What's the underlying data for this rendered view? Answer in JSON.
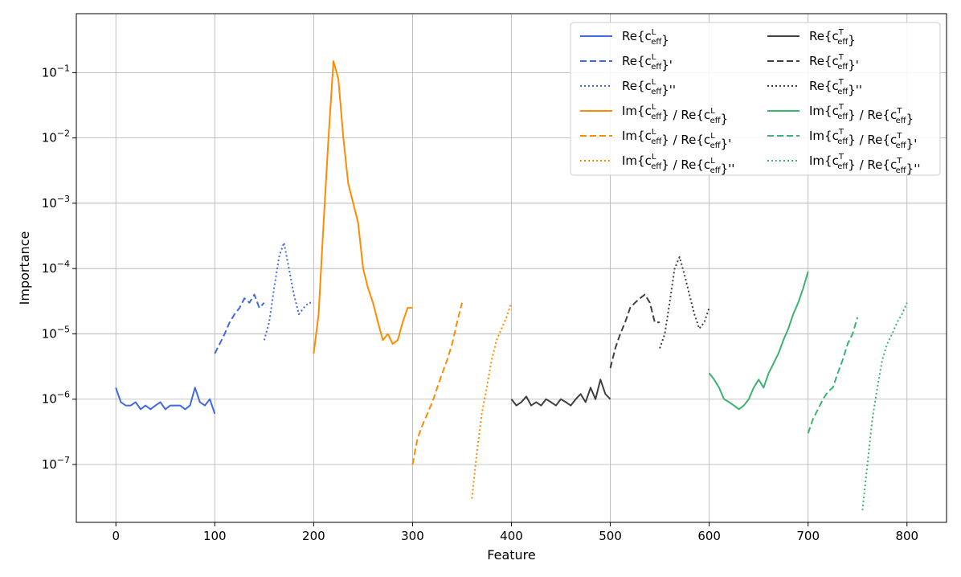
{
  "chart_data": {
    "type": "line",
    "title": "",
    "xlabel": "Feature",
    "ylabel": "Importance",
    "xlim": [
      -40,
      840
    ],
    "ylim": [
      1.3e-08,
      0.8
    ],
    "yscale": "log",
    "grid": true,
    "legend_position": "top-right",
    "legend_columns": 2,
    "x_ticks": [
      "0",
      "100",
      "200",
      "300",
      "400",
      "500",
      "600",
      "700",
      "800"
    ],
    "y_ticks": [
      "10^-7",
      "10^-6",
      "10^-5",
      "10^-4",
      "10^-3",
      "10^-2",
      "10^-1"
    ],
    "colors": {
      "blue": "#4169e1",
      "orange": "#ff8c00",
      "gray": "#404040",
      "green": "#3cb371"
    },
    "series": [
      {
        "key": "s1",
        "base": "Re{c",
        "sup": "L",
        "suffix": "}",
        "color": "#4169e1",
        "dash": "solid",
        "x": [
          0,
          5,
          10,
          15,
          20,
          25,
          30,
          35,
          40,
          45,
          50,
          55,
          60,
          65,
          70,
          75,
          80,
          85,
          90,
          95,
          100
        ],
        "y": [
          1.5e-06,
          9e-07,
          8e-07,
          8e-07,
          9e-07,
          7e-07,
          8e-07,
          7e-07,
          8e-07,
          9e-07,
          7e-07,
          8e-07,
          8e-07,
          8e-07,
          7e-07,
          8e-07,
          1.5e-06,
          9e-07,
          8e-07,
          1e-06,
          6e-07
        ]
      },
      {
        "key": "s2",
        "base": "Re{c",
        "sup": "L",
        "suffix": "}'",
        "color": "#4169e1",
        "dash": "dashed",
        "x": [
          100,
          105,
          110,
          115,
          120,
          125,
          130,
          135,
          140,
          145,
          150
        ],
        "y": [
          5e-06,
          7e-06,
          1e-05,
          1.5e-05,
          2e-05,
          2.5e-05,
          3.5e-05,
          3e-05,
          4e-05,
          2.5e-05,
          3e-05
        ]
      },
      {
        "key": "s3",
        "base": "Re{c",
        "sup": "L",
        "suffix": "}''",
        "color": "#4169e1",
        "dash": "dotted",
        "x": [
          150,
          155,
          160,
          165,
          170,
          175,
          180,
          185,
          190,
          195,
          200
        ],
        "y": [
          8e-06,
          1.5e-05,
          5e-05,
          0.00015,
          0.00025,
          0.0001,
          4e-05,
          2e-05,
          2.5e-05,
          3e-05,
          3e-05
        ]
      },
      {
        "key": "s4",
        "base": "Im{c",
        "sup": "L",
        "mid": "} / Re{c",
        "sup2": "L",
        "suffix": "}",
        "color": "#ff8c00",
        "dash": "solid",
        "x": [
          200,
          205,
          210,
          215,
          220,
          225,
          230,
          235,
          240,
          245,
          250,
          255,
          260,
          265,
          270,
          275,
          280,
          285,
          290,
          295,
          300
        ],
        "y": [
          5e-06,
          2e-05,
          0.0005,
          0.01,
          0.15,
          0.08,
          0.01,
          0.002,
          0.001,
          0.0005,
          0.0001,
          5e-05,
          3e-05,
          1.5e-05,
          8e-06,
          1e-05,
          7e-06,
          8e-06,
          1.5e-05,
          2.5e-05,
          2.5e-05
        ]
      },
      {
        "key": "s5",
        "base": "Im{c",
        "sup": "L",
        "mid": "} / Re{c",
        "sup2": "L",
        "suffix": "}'",
        "color": "#ff8c00",
        "dash": "dashed",
        "x": [
          300,
          305,
          310,
          315,
          320,
          325,
          330,
          335,
          340,
          345,
          350
        ],
        "y": [
          1e-07,
          2.5e-07,
          4e-07,
          6e-07,
          9e-07,
          1.5e-06,
          2.5e-06,
          4e-06,
          7e-06,
          1.5e-05,
          3e-05
        ]
      },
      {
        "key": "s6",
        "base": "Im{c",
        "sup": "L",
        "mid": "} / Re{c",
        "sup2": "L",
        "suffix": "}''",
        "color": "#ff8c00",
        "dash": "dotted",
        "x": [
          360,
          365,
          370,
          375,
          380,
          385,
          390,
          395,
          400
        ],
        "y": [
          3e-08,
          1.5e-07,
          6e-07,
          1.5e-06,
          4e-06,
          8e-06,
          1.2e-05,
          1.8e-05,
          3e-05
        ]
      },
      {
        "key": "s7",
        "base": "Re{c",
        "sup": "T",
        "suffix": "}",
        "color": "#404040",
        "dash": "solid",
        "x": [
          400,
          405,
          410,
          415,
          420,
          425,
          430,
          435,
          440,
          445,
          450,
          455,
          460,
          465,
          470,
          475,
          480,
          485,
          490,
          495,
          500
        ],
        "y": [
          1e-06,
          8e-07,
          9e-07,
          1.1e-06,
          8e-07,
          9e-07,
          8e-07,
          1e-06,
          9e-07,
          8e-07,
          1e-06,
          9e-07,
          8e-07,
          1e-06,
          1.2e-06,
          9e-07,
          1.5e-06,
          1e-06,
          2e-06,
          1.2e-06,
          1e-06
        ]
      },
      {
        "key": "s8",
        "base": "Re{c",
        "sup": "T",
        "suffix": "}'",
        "color": "#404040",
        "dash": "dashed",
        "x": [
          500,
          505,
          510,
          515,
          520,
          525,
          530,
          535,
          540,
          545,
          550
        ],
        "y": [
          3e-06,
          6e-06,
          1e-05,
          1.5e-05,
          2.5e-05,
          3e-05,
          3.5e-05,
          4e-05,
          3e-05,
          1.5e-05,
          1.5e-05
        ]
      },
      {
        "key": "s9",
        "base": "Re{c",
        "sup": "T",
        "suffix": "}''",
        "color": "#404040",
        "dash": "dotted",
        "x": [
          550,
          555,
          560,
          565,
          570,
          575,
          580,
          585,
          590,
          595,
          600
        ],
        "y": [
          6e-06,
          1e-05,
          3e-05,
          0.0001,
          0.00015,
          8e-05,
          4e-05,
          2e-05,
          1.2e-05,
          1.5e-05,
          2.5e-05
        ]
      },
      {
        "key": "s10",
        "base": "Im{c",
        "sup": "T",
        "mid": "} / Re{c",
        "sup2": "T",
        "suffix": "}",
        "color": "#3cb371",
        "dash": "solid",
        "x": [
          600,
          605,
          610,
          615,
          620,
          625,
          630,
          635,
          640,
          645,
          650,
          655,
          660,
          665,
          670,
          675,
          680,
          685,
          690,
          695,
          700
        ],
        "y": [
          2.5e-06,
          2e-06,
          1.5e-06,
          1e-06,
          9e-07,
          8e-07,
          7e-07,
          8e-07,
          1e-06,
          1.5e-06,
          2e-06,
          1.5e-06,
          2.5e-06,
          3.5e-06,
          5e-06,
          8e-06,
          1.2e-05,
          2e-05,
          3e-05,
          5e-05,
          9e-05
        ]
      },
      {
        "key": "s11",
        "base": "Im{c",
        "sup": "T",
        "mid": "} / Re{c",
        "sup2": "T",
        "suffix": "}'",
        "color": "#3cb371",
        "dash": "dashed",
        "x": [
          700,
          705,
          710,
          715,
          720,
          725,
          730,
          735,
          740,
          745,
          750
        ],
        "y": [
          3e-07,
          5e-07,
          7e-07,
          1e-06,
          1.3e-06,
          1.5e-06,
          2.5e-06,
          4e-06,
          7e-06,
          1e-05,
          1.8e-05
        ]
      },
      {
        "key": "s12",
        "base": "Im{c",
        "sup": "T",
        "mid": "} / Re{c",
        "sup2": "T",
        "suffix": "}''",
        "color": "#3cb371",
        "dash": "dotted",
        "x": [
          755,
          760,
          765,
          770,
          775,
          780,
          785,
          790,
          795,
          800
        ],
        "y": [
          2e-08,
          1e-07,
          5e-07,
          1.5e-06,
          4e-06,
          7e-06,
          1e-05,
          1.5e-05,
          2e-05,
          3e-05
        ]
      }
    ]
  }
}
